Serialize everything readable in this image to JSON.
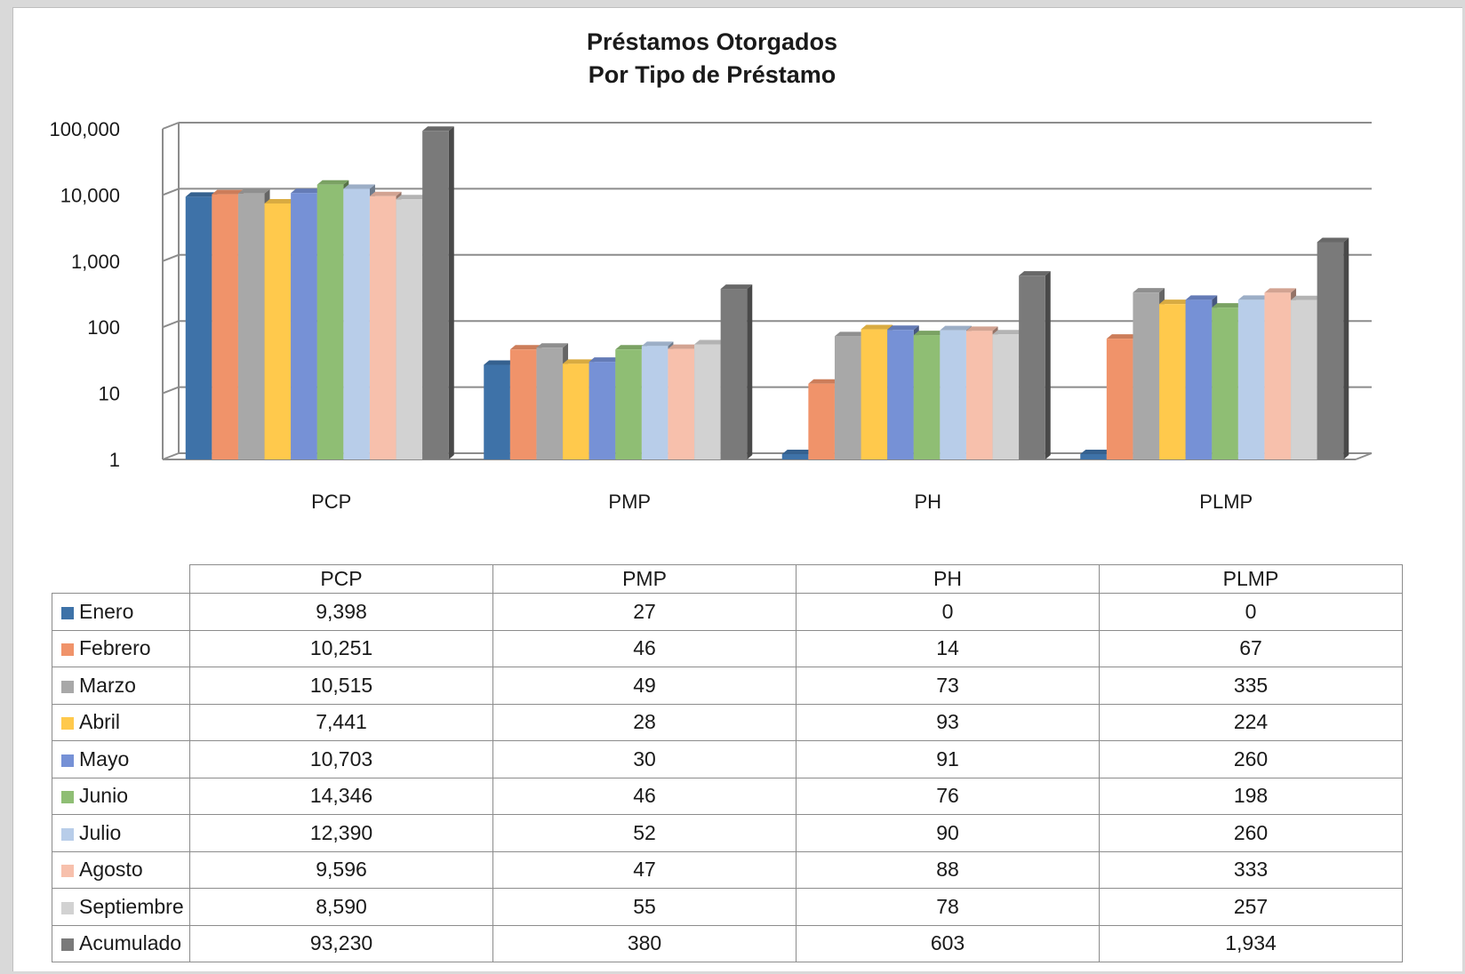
{
  "chart_data": {
    "type": "bar",
    "title": "Préstamos Otorgados",
    "subtitle": "Por Tipo de Préstamo",
    "y_scale": "log",
    "ylim": [
      1,
      100000
    ],
    "y_ticks": [
      1,
      10,
      100,
      1000,
      10000,
      100000
    ],
    "y_tick_labels": [
      "1",
      "10",
      "100",
      "1,000",
      "10,000",
      "100,000"
    ],
    "grid": true,
    "legend": "table",
    "categories": [
      "PCP",
      "PMP",
      "PH",
      "PLMP"
    ],
    "series": [
      {
        "name": "Enero",
        "color": "#3e72a8",
        "values": [
          9398,
          27,
          0,
          0
        ],
        "labels": [
          "9,398",
          "27",
          "0",
          "0"
        ]
      },
      {
        "name": "Febrero",
        "color": "#f0936a",
        "values": [
          10251,
          46,
          14,
          67
        ],
        "labels": [
          "10,251",
          "46",
          "14",
          "67"
        ]
      },
      {
        "name": "Marzo",
        "color": "#a8a8a8",
        "values": [
          10515,
          49,
          73,
          335
        ],
        "labels": [
          "10,515",
          "49",
          "73",
          "335"
        ]
      },
      {
        "name": "Abril",
        "color": "#ffc94c",
        "values": [
          7441,
          28,
          93,
          224
        ],
        "labels": [
          "7,441",
          "28",
          "93",
          "224"
        ]
      },
      {
        "name": "Mayo",
        "color": "#7691d6",
        "values": [
          10703,
          30,
          91,
          260
        ],
        "labels": [
          "10,703",
          "30",
          "91",
          "260"
        ]
      },
      {
        "name": "Junio",
        "color": "#8fbe74",
        "values": [
          14346,
          46,
          76,
          198
        ],
        "labels": [
          "14,346",
          "46",
          "76",
          "198"
        ]
      },
      {
        "name": "Julio",
        "color": "#b8cde9",
        "values": [
          12390,
          52,
          90,
          260
        ],
        "labels": [
          "12,390",
          "52",
          "90",
          "260"
        ]
      },
      {
        "name": "Agosto",
        "color": "#f7c0ac",
        "values": [
          9596,
          47,
          88,
          333
        ],
        "labels": [
          "9,596",
          "47",
          "88",
          "333"
        ]
      },
      {
        "name": "Septiembre",
        "color": "#d2d2d2",
        "values": [
          8590,
          55,
          78,
          257
        ],
        "labels": [
          "8,590",
          "55",
          "78",
          "257"
        ]
      },
      {
        "name": "Acumulado",
        "color": "#7a7a7a",
        "values": [
          93230,
          380,
          603,
          1934
        ],
        "labels": [
          "93,230",
          "380",
          "603",
          "1,934"
        ]
      }
    ]
  }
}
